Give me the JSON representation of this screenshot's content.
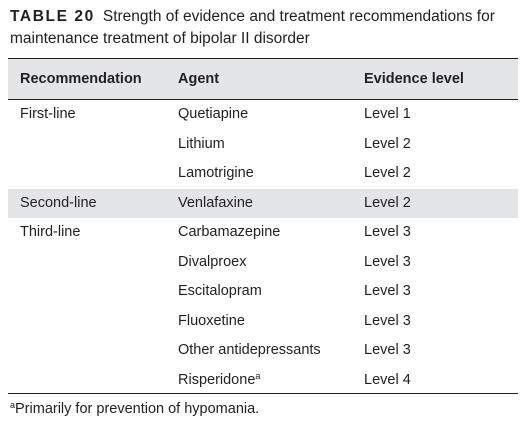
{
  "caption": {
    "label": "TABLE 20",
    "text": "Strength of evidence and treatment recommendations for maintenance treatment of bipolar II disorder"
  },
  "table": {
    "headers": [
      "Recommendation",
      "Agent",
      "Evidence level"
    ],
    "rows": [
      {
        "recommendation": "First-line",
        "agent": "Quetiapine",
        "evidence": "Level 1",
        "shaded": false
      },
      {
        "recommendation": "",
        "agent": "Lithium",
        "evidence": "Level 2",
        "shaded": false
      },
      {
        "recommendation": "",
        "agent": "Lamotrigine",
        "evidence": "Level 2",
        "shaded": false
      },
      {
        "recommendation": "Second-line",
        "agent": "Venlafaxine",
        "evidence": "Level 2",
        "shaded": true
      },
      {
        "recommendation": "Third-line",
        "agent": "Carbamazepine",
        "evidence": "Level 3",
        "shaded": false
      },
      {
        "recommendation": "",
        "agent": "Divalproex",
        "evidence": "Level 3",
        "shaded": false
      },
      {
        "recommendation": "",
        "agent": "Escitalopram",
        "evidence": "Level 3",
        "shaded": false
      },
      {
        "recommendation": "",
        "agent": "Fluoxetine",
        "evidence": "Level 3",
        "shaded": false
      },
      {
        "recommendation": "",
        "agent": "Other antidepressants",
        "evidence": "Level 3",
        "shaded": false
      },
      {
        "recommendation": "",
        "agent": "Risperidone",
        "agent_sup": "a",
        "evidence": "Level 4",
        "shaded": false
      }
    ],
    "shade_color": "#e4e5e6"
  },
  "footnote": {
    "marker": "a",
    "text": "Primarily for prevention of hypomania."
  }
}
